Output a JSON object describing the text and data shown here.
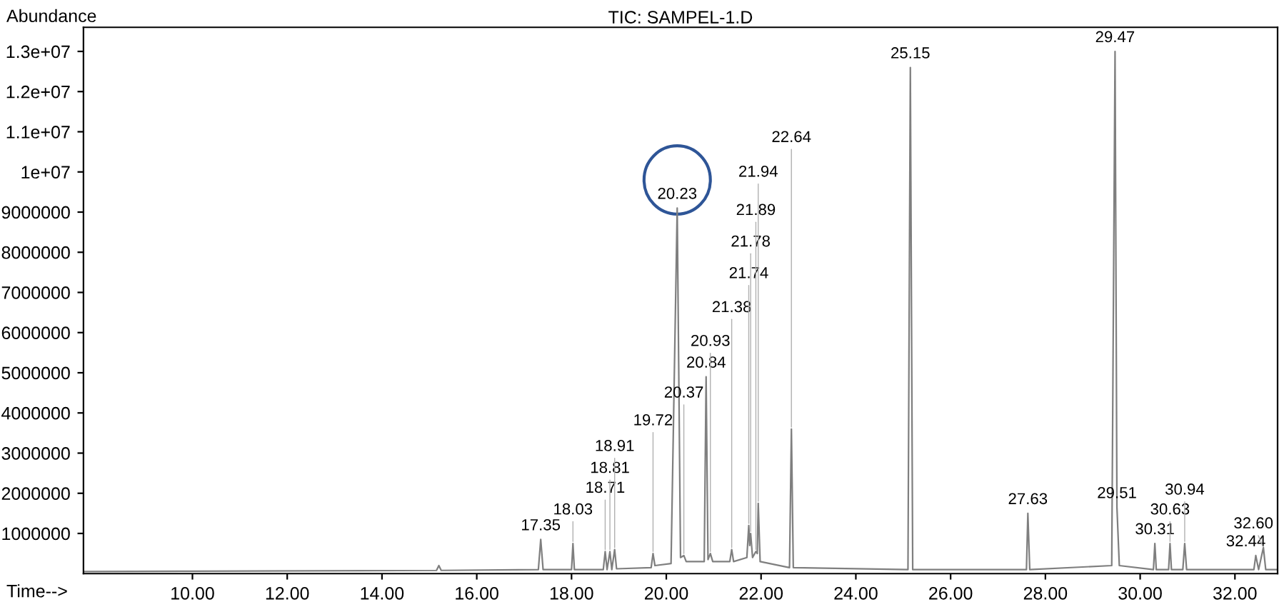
{
  "chart_data": {
    "type": "line",
    "title": "TIC: SAMPEL-1.D",
    "ylabel": "Abundance",
    "xlabel": "Time-->",
    "xlim": [
      7.7,
      32.9
    ],
    "ylim": [
      0,
      13600000
    ],
    "xticks": [
      {
        "value": 10,
        "label": "10.00"
      },
      {
        "value": 12,
        "label": "12.00"
      },
      {
        "value": 14,
        "label": "14.00"
      },
      {
        "value": 16,
        "label": "16.00"
      },
      {
        "value": 18,
        "label": "18.00"
      },
      {
        "value": 20,
        "label": "20.00"
      },
      {
        "value": 22,
        "label": "22.00"
      },
      {
        "value": 24,
        "label": "24.00"
      },
      {
        "value": 26,
        "label": "26.00"
      },
      {
        "value": 28,
        "label": "28.00"
      },
      {
        "value": 30,
        "label": "30.00"
      },
      {
        "value": 32,
        "label": "32.00"
      }
    ],
    "yticks": [
      1000000,
      2000000,
      3000000,
      4000000,
      5000000,
      6000000,
      7000000,
      8000000,
      9000000,
      {
        "value": 10000000,
        "label": "1e+07"
      },
      {
        "value": 11000000,
        "label": "1.1e+07"
      },
      {
        "value": 12000000,
        "label": "1.2e+07"
      },
      {
        "value": 13000000,
        "label": "1.3e+07"
      }
    ],
    "grid": false,
    "legend": false,
    "marker": "none",
    "line_style": "solid",
    "series": [
      {
        "color": "#7f7f7f",
        "x": [
          7.7,
          10.0,
          15.15,
          15.2,
          15.25,
          17.3,
          17.35,
          17.4,
          18.0,
          18.03,
          18.06,
          18.67,
          18.71,
          18.75,
          18.81,
          18.85,
          18.91,
          18.95,
          19.68,
          19.72,
          19.76,
          20.1,
          20.23,
          20.3,
          20.37,
          20.42,
          20.8,
          20.84,
          20.88,
          20.93,
          20.98,
          21.34,
          21.38,
          21.42,
          21.7,
          21.74,
          21.76,
          21.78,
          21.82,
          21.89,
          21.92,
          21.94,
          21.98,
          22.6,
          22.64,
          22.68,
          25.1,
          25.15,
          25.2,
          27.6,
          27.63,
          27.67,
          29.4,
          29.47,
          29.51,
          29.56,
          30.28,
          30.31,
          30.34,
          30.6,
          30.63,
          30.66,
          30.9,
          30.94,
          30.98,
          32.4,
          32.44,
          32.5,
          32.6,
          32.65,
          32.9
        ],
        "values": [
          50000,
          60000,
          80000,
          200000,
          80000,
          100000,
          850000,
          100000,
          100000,
          750000,
          100000,
          100000,
          550000,
          100000,
          550000,
          100000,
          600000,
          120000,
          150000,
          500000,
          200000,
          250000,
          9100000,
          400000,
          450000,
          300000,
          300000,
          4900000,
          350000,
          500000,
          300000,
          300000,
          600000,
          300000,
          400000,
          1200000,
          700000,
          1000000,
          400000,
          550000,
          500000,
          1750000,
          300000,
          150000,
          3600000,
          150000,
          100000,
          12600000,
          100000,
          100000,
          1500000,
          100000,
          200000,
          13000000,
          1650000,
          200000,
          100000,
          750000,
          100000,
          100000,
          750000,
          100000,
          100000,
          750000,
          100000,
          100000,
          450000,
          100000,
          650000,
          100000,
          100000
        ]
      }
    ],
    "annotations": [
      {
        "text": "20.23",
        "x": 20.23,
        "y": 9100000
      },
      {
        "text": "17.35",
        "x": 17.35,
        "y": 850000
      },
      {
        "text": "18.03",
        "x": 18.03,
        "y": 750000
      },
      {
        "text": "18.71",
        "x": 18.71,
        "y": 550000
      },
      {
        "text": "18.81",
        "x": 18.81,
        "y": 550000
      },
      {
        "text": "18.91",
        "x": 18.91,
        "y": 600000
      },
      {
        "text": "19.72",
        "x": 19.72,
        "y": 500000
      },
      {
        "text": "20.37",
        "x": 20.37,
        "y": 450000
      },
      {
        "text": "20.84",
        "x": 20.84,
        "y": 4900000
      },
      {
        "text": "20.93",
        "x": 20.93,
        "y": 500000
      },
      {
        "text": "21.38",
        "x": 21.38,
        "y": 600000
      },
      {
        "text": "21.74",
        "x": 21.74,
        "y": 1200000
      },
      {
        "text": "21.78",
        "x": 21.78,
        "y": 1000000
      },
      {
        "text": "21.89",
        "x": 21.89,
        "y": 550000
      },
      {
        "text": "21.94",
        "x": 21.94,
        "y": 1750000
      },
      {
        "text": "22.64",
        "x": 22.64,
        "y": 3600000
      },
      {
        "text": "25.15",
        "x": 25.15,
        "y": 12600000
      },
      {
        "text": "27.63",
        "x": 27.63,
        "y": 1500000
      },
      {
        "text": "29.47",
        "x": 29.47,
        "y": 13000000
      },
      {
        "text": "29.51",
        "x": 29.51,
        "y": 1650000
      },
      {
        "text": "30.31",
        "x": 30.31,
        "y": 750000
      },
      {
        "text": "30.63",
        "x": 30.63,
        "y": 750000
      },
      {
        "text": "30.94",
        "x": 30.94,
        "y": 750000
      },
      {
        "text": "32.44",
        "x": 32.44,
        "y": 450000
      },
      {
        "text": "32.60",
        "x": 32.6,
        "y": 650000
      }
    ]
  }
}
